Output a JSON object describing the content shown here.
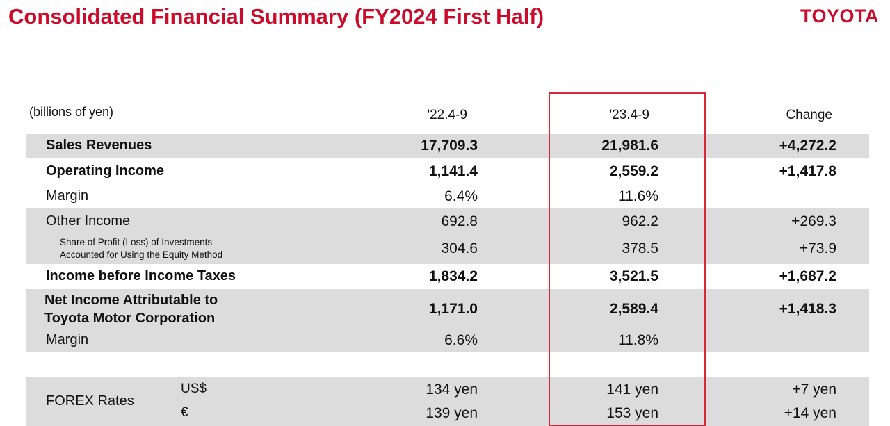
{
  "header": {
    "title": "Consolidated Financial Summary (FY2024 First Half)",
    "brand": "TOYOTA"
  },
  "table": {
    "units": "(billions of yen)",
    "columns": [
      "'22.4-9",
      "'23.4-9",
      "Change"
    ],
    "rows": [
      {
        "label": "Sales Revenues",
        "prev": "17,709.3",
        "curr": "21,981.6",
        "change": "+4,272.2"
      },
      {
        "label": "Operating Income",
        "prev": "1,141.4",
        "curr": "2,559.2",
        "change": "+1,417.8"
      },
      {
        "label": "Margin",
        "prev": "6.4%",
        "curr": "11.6%",
        "change": ""
      },
      {
        "label": "Other Income",
        "prev": "692.8",
        "curr": "962.2",
        "change": "+269.3"
      },
      {
        "label_line1": "Share of Profit (Loss) of Investments",
        "label_line2": "Accounted for Using the Equity Method",
        "prev": "304.6",
        "curr": "378.5",
        "change": "+73.9"
      },
      {
        "label": "Income before Income Taxes",
        "prev": "1,834.2",
        "curr": "3,521.5",
        "change": "+1,687.2"
      },
      {
        "label_line1": "Net Income Attributable to",
        "label_line2": "Toyota Motor Corporation",
        "prev": "1,171.0",
        "curr": "2,589.4",
        "change": "+1,418.3"
      },
      {
        "label": "Margin",
        "prev": "6.6%",
        "curr": "11.8%",
        "change": ""
      }
    ],
    "forex": {
      "label": "FOREX Rates",
      "usd": {
        "currency": "US$",
        "prev": "134 yen",
        "curr": "141 yen",
        "change": "+7 yen"
      },
      "eur": {
        "currency": "€",
        "prev": "139 yen",
        "curr": "153 yen",
        "change": "+14 yen"
      }
    }
  },
  "colors": {
    "accent": "#cc0a2a",
    "band": "#dcdcdc",
    "highlight_border": "#d8263a"
  }
}
